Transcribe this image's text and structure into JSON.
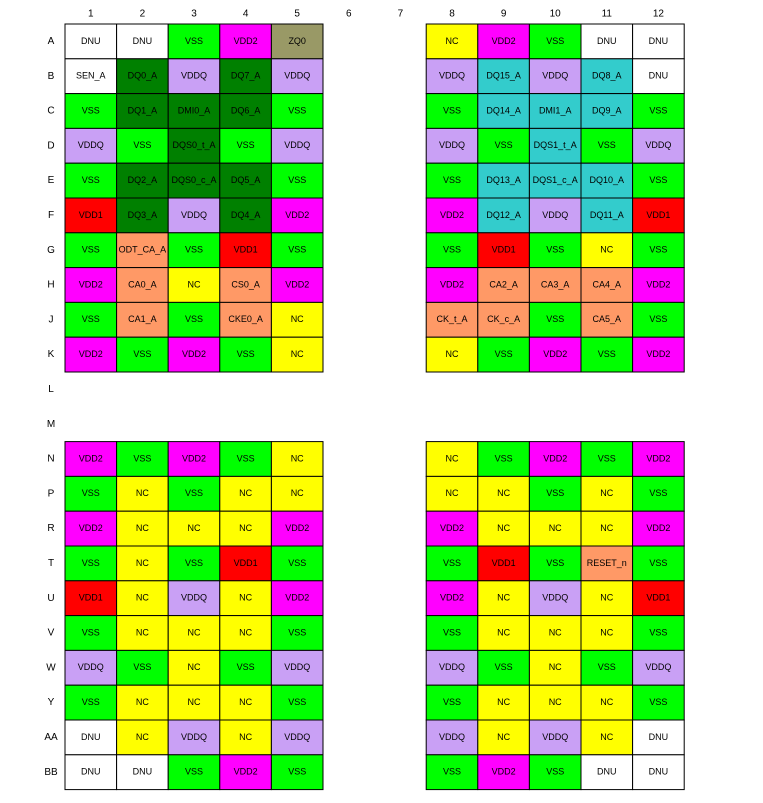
{
  "columns": [
    "1",
    "2",
    "3",
    "4",
    "5",
    "6",
    "7",
    "8",
    "9",
    "10",
    "11",
    "12"
  ],
  "rows": [
    {
      "label": "A",
      "cells": [
        "DNU",
        "DNU",
        "VSS",
        "VDD2",
        "ZQ0",
        null,
        null,
        "NC",
        "VDD2",
        "VSS",
        "DNU",
        "DNU"
      ],
      "fills": [
        "#fff",
        "#fff",
        "#0f0",
        "#f0f",
        "#999966",
        null,
        null,
        "#ff0",
        "#f0f",
        "#0f0",
        "#fff",
        "#fff"
      ]
    },
    {
      "label": "B",
      "cells": [
        "SEN_A",
        "DQ0_A",
        "VDDQ",
        "DQ7_A",
        "VDDQ",
        null,
        null,
        "VDDQ",
        "DQ15_A",
        "VDDQ",
        "DQ8_A",
        "DNU"
      ],
      "fills": [
        "#fff",
        "#008000",
        "#c9a0f5",
        "#008000",
        "#c9a0f5",
        null,
        null,
        "#c9a0f5",
        "#33cccc",
        "#c9a0f5",
        "#33cccc",
        "#fff"
      ]
    },
    {
      "label": "C",
      "cells": [
        "VSS",
        "DQ1_A",
        "DMI0_A",
        "DQ6_A",
        "VSS",
        null,
        null,
        "VSS",
        "DQ14_A",
        "DMI1_A",
        "DQ9_A",
        "VSS"
      ],
      "fills": [
        "#0f0",
        "#008000",
        "#008000",
        "#008000",
        "#0f0",
        null,
        null,
        "#0f0",
        "#33cccc",
        "#33cccc",
        "#33cccc",
        "#0f0"
      ]
    },
    {
      "label": "D",
      "cells": [
        "VDDQ",
        "VSS",
        "DQS0_t_A",
        "VSS",
        "VDDQ",
        null,
        null,
        "VDDQ",
        "VSS",
        "DQS1_t_A",
        "VSS",
        "VDDQ"
      ],
      "fills": [
        "#c9a0f5",
        "#0f0",
        "#008000",
        "#0f0",
        "#c9a0f5",
        null,
        null,
        "#c9a0f5",
        "#0f0",
        "#33cccc",
        "#0f0",
        "#c9a0f5"
      ]
    },
    {
      "label": "E",
      "cells": [
        "VSS",
        "DQ2_A",
        "DQS0_c_A",
        "DQ5_A",
        "VSS",
        null,
        null,
        "VSS",
        "DQ13_A",
        "DQS1_c_A",
        "DQ10_A",
        "VSS"
      ],
      "fills": [
        "#0f0",
        "#008000",
        "#008000",
        "#008000",
        "#0f0",
        null,
        null,
        "#0f0",
        "#33cccc",
        "#33cccc",
        "#33cccc",
        "#0f0"
      ]
    },
    {
      "label": "F",
      "cells": [
        "VDD1",
        "DQ3_A",
        "VDDQ",
        "DQ4_A",
        "VDD2",
        null,
        null,
        "VDD2",
        "DQ12_A",
        "VDDQ",
        "DQ11_A",
        "VDD1"
      ],
      "fills": [
        "#f00",
        "#008000",
        "#c9a0f5",
        "#008000",
        "#f0f",
        null,
        null,
        "#f0f",
        "#33cccc",
        "#c9a0f5",
        "#33cccc",
        "#f00"
      ]
    },
    {
      "label": "G",
      "cells": [
        "VSS",
        "ODT_CA_A",
        "VSS",
        "VDD1",
        "VSS",
        null,
        null,
        "VSS",
        "VDD1",
        "VSS",
        "NC",
        "VSS"
      ],
      "fills": [
        "#0f0",
        "#ff9966",
        "#0f0",
        "#f00",
        "#0f0",
        null,
        null,
        "#0f0",
        "#f00",
        "#0f0",
        "#ff0",
        "#0f0"
      ]
    },
    {
      "label": "H",
      "cells": [
        "VDD2",
        "CA0_A",
        "NC",
        "CS0_A",
        "VDD2",
        null,
        null,
        "VDD2",
        "CA2_A",
        "CA3_A",
        "CA4_A",
        "VDD2"
      ],
      "fills": [
        "#f0f",
        "#ff9966",
        "#ff0",
        "#ff9966",
        "#f0f",
        null,
        null,
        "#f0f",
        "#ff9966",
        "#ff9966",
        "#ff9966",
        "#f0f"
      ]
    },
    {
      "label": "J",
      "cells": [
        "VSS",
        "CA1_A",
        "VSS",
        "CKE0_A",
        "NC",
        null,
        null,
        "CK_t_A",
        "CK_c_A",
        "VSS",
        "CA5_A",
        "VSS"
      ],
      "fills": [
        "#0f0",
        "#ff9966",
        "#0f0",
        "#ff9966",
        "#ff0",
        null,
        null,
        "#ff9966",
        "#ff9966",
        "#0f0",
        "#ff9966",
        "#0f0"
      ]
    },
    {
      "label": "K",
      "cells": [
        "VDD2",
        "VSS",
        "VDD2",
        "VSS",
        "NC",
        null,
        null,
        "NC",
        "VSS",
        "VDD2",
        "VSS",
        "VDD2"
      ],
      "fills": [
        "#f0f",
        "#0f0",
        "#f0f",
        "#0f0",
        "#ff0",
        null,
        null,
        "#ff0",
        "#0f0",
        "#f0f",
        "#0f0",
        "#f0f"
      ]
    },
    {
      "label": "L",
      "cells": [],
      "fills": []
    },
    {
      "label": "M",
      "cells": [],
      "fills": []
    },
    {
      "label": "N",
      "cells": [
        "VDD2",
        "VSS",
        "VDD2",
        "VSS",
        "NC",
        null,
        null,
        "NC",
        "VSS",
        "VDD2",
        "VSS",
        "VDD2"
      ],
      "fills": [
        "#f0f",
        "#0f0",
        "#f0f",
        "#0f0",
        "#ff0",
        null,
        null,
        "#ff0",
        "#0f0",
        "#f0f",
        "#0f0",
        "#f0f"
      ]
    },
    {
      "label": "P",
      "cells": [
        "VSS",
        "NC",
        "VSS",
        "NC",
        "NC",
        null,
        null,
        "NC",
        "NC",
        "VSS",
        "NC",
        "VSS"
      ],
      "fills": [
        "#0f0",
        "#ff0",
        "#0f0",
        "#ff0",
        "#ff0",
        null,
        null,
        "#ff0",
        "#ff0",
        "#0f0",
        "#ff0",
        "#0f0"
      ]
    },
    {
      "label": "R",
      "cells": [
        "VDD2",
        "NC",
        "NC",
        "NC",
        "VDD2",
        null,
        null,
        "VDD2",
        "NC",
        "NC",
        "NC",
        "VDD2"
      ],
      "fills": [
        "#f0f",
        "#ff0",
        "#ff0",
        "#ff0",
        "#f0f",
        null,
        null,
        "#f0f",
        "#ff0",
        "#ff0",
        "#ff0",
        "#f0f"
      ]
    },
    {
      "label": "T",
      "cells": [
        "VSS",
        "NC",
        "VSS",
        "VDD1",
        "VSS",
        null,
        null,
        "VSS",
        "VDD1",
        "VSS",
        "RESET_n",
        "VSS"
      ],
      "fills": [
        "#0f0",
        "#ff0",
        "#0f0",
        "#f00",
        "#0f0",
        null,
        null,
        "#0f0",
        "#f00",
        "#0f0",
        "#ff9966",
        "#0f0"
      ]
    },
    {
      "label": "U",
      "cells": [
        "VDD1",
        "NC",
        "VDDQ",
        "NC",
        "VDD2",
        null,
        null,
        "VDD2",
        "NC",
        "VDDQ",
        "NC",
        "VDD1"
      ],
      "fills": [
        "#f00",
        "#ff0",
        "#c9a0f5",
        "#ff0",
        "#f0f",
        null,
        null,
        "#f0f",
        "#ff0",
        "#c9a0f5",
        "#ff0",
        "#f00"
      ]
    },
    {
      "label": "V",
      "cells": [
        "VSS",
        "NC",
        "NC",
        "NC",
        "VSS",
        null,
        null,
        "VSS",
        "NC",
        "NC",
        "NC",
        "VSS"
      ],
      "fills": [
        "#0f0",
        "#ff0",
        "#ff0",
        "#ff0",
        "#0f0",
        null,
        null,
        "#0f0",
        "#ff0",
        "#ff0",
        "#ff0",
        "#0f0"
      ]
    },
    {
      "label": "W",
      "cells": [
        "VDDQ",
        "VSS",
        "NC",
        "VSS",
        "VDDQ",
        null,
        null,
        "VDDQ",
        "VSS",
        "NC",
        "VSS",
        "VDDQ"
      ],
      "fills": [
        "#c9a0f5",
        "#0f0",
        "#ff0",
        "#0f0",
        "#c9a0f5",
        null,
        null,
        "#c9a0f5",
        "#0f0",
        "#ff0",
        "#0f0",
        "#c9a0f5"
      ]
    },
    {
      "label": "Y",
      "cells": [
        "VSS",
        "NC",
        "NC",
        "NC",
        "VSS",
        null,
        null,
        "VSS",
        "NC",
        "NC",
        "NC",
        "VSS"
      ],
      "fills": [
        "#0f0",
        "#ff0",
        "#ff0",
        "#ff0",
        "#0f0",
        null,
        null,
        "#0f0",
        "#ff0",
        "#ff0",
        "#ff0",
        "#0f0"
      ]
    },
    {
      "label": "AA",
      "cells": [
        "DNU",
        "NC",
        "VDDQ",
        "NC",
        "VDDQ",
        null,
        null,
        "VDDQ",
        "NC",
        "VDDQ",
        "NC",
        "DNU"
      ],
      "fills": [
        "#fff",
        "#ff0",
        "#c9a0f5",
        "#ff0",
        "#c9a0f5",
        null,
        null,
        "#c9a0f5",
        "#ff0",
        "#c9a0f5",
        "#ff0",
        "#fff"
      ]
    },
    {
      "label": "BB",
      "cells": [
        "DNU",
        "DNU",
        "VSS",
        "VDD2",
        "VSS",
        null,
        null,
        "VSS",
        "VDD2",
        "VSS",
        "DNU",
        "DNU"
      ],
      "fills": [
        "#fff",
        "#fff",
        "#0f0",
        "#f0f",
        "#0f0",
        null,
        null,
        "#0f0",
        "#f0f",
        "#0f0",
        "#fff",
        "#fff"
      ]
    }
  ]
}
